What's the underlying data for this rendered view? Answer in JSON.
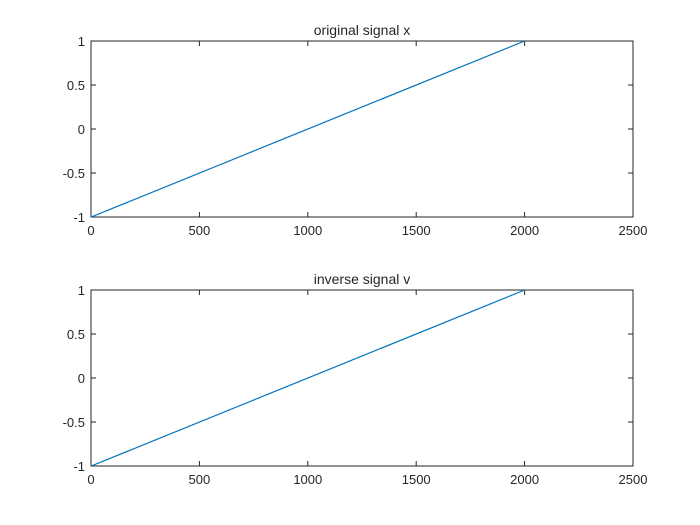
{
  "chart_data": [
    {
      "type": "line",
      "title": "original signal x",
      "xlabel": "",
      "ylabel": "",
      "xlim": [
        0,
        2500
      ],
      "ylim": [
        -1,
        1
      ],
      "xticks": [
        0,
        500,
        1000,
        1500,
        2000,
        2500
      ],
      "xtick_labels": [
        "0",
        "500",
        "1000",
        "1500",
        "2000",
        "2500"
      ],
      "yticks": [
        -1,
        -0.5,
        0,
        0.5,
        1
      ],
      "ytick_labels": [
        "-1",
        "-0.5",
        "0",
        "0.5",
        "1"
      ],
      "grid": false,
      "series": [
        {
          "x": [
            1,
            2000
          ],
          "y": [
            -1,
            1
          ],
          "color": "#0072BD"
        }
      ]
    },
    {
      "type": "line",
      "title": "inverse signal v",
      "xlabel": "",
      "ylabel": "",
      "xlim": [
        0,
        2500
      ],
      "ylim": [
        -1,
        1
      ],
      "xticks": [
        0,
        500,
        1000,
        1500,
        2000,
        2500
      ],
      "xtick_labels": [
        "0",
        "500",
        "1000",
        "1500",
        "2000",
        "2500"
      ],
      "yticks": [
        -1,
        -0.5,
        0,
        0.5,
        1
      ],
      "ytick_labels": [
        "-1",
        "-0.5",
        "0",
        "0.5",
        "1"
      ],
      "grid": false,
      "series": [
        {
          "x": [
            1,
            2000
          ],
          "y": [
            -1,
            1
          ],
          "color": "#0072BD"
        }
      ]
    }
  ]
}
